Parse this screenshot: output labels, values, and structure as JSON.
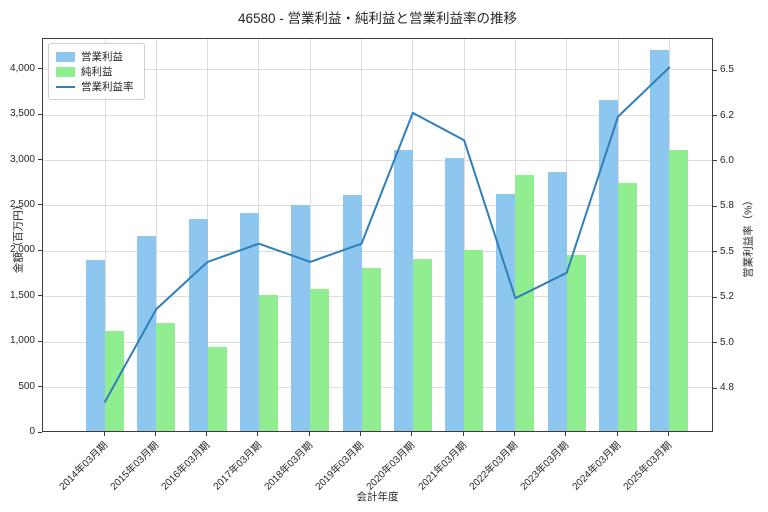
{
  "title": "46580 - 営業利益・純利益と営業利益率の推移",
  "chart_data": {
    "type": "bar+line",
    "title": "46580 - 営業利益・純利益と営業利益率の推移",
    "xlabel": "会計年度",
    "ylabel_left": "金額（百万円）",
    "ylabel_right": "営業利益率（%）",
    "grid": true,
    "legend_position": "upper-left",
    "categories": [
      "2014年03月期",
      "2015年03月期",
      "2016年03月期",
      "2017年03月期",
      "2018年03月期",
      "2019年03月期",
      "2020年03月期",
      "2021年03月期",
      "2022年03月期",
      "2023年03月期",
      "2024年03月期",
      "2025年03月期"
    ],
    "series": [
      {
        "name": "営業利益",
        "type": "bar",
        "axis": "left",
        "color": "#8dc7f0",
        "values": [
          1880,
          2150,
          2330,
          2400,
          2490,
          2600,
          3100,
          3010,
          2610,
          2850,
          3640,
          4200
        ]
      },
      {
        "name": "純利益",
        "type": "bar",
        "axis": "left",
        "color": "#90ee90",
        "values": [
          1100,
          1190,
          920,
          1500,
          1560,
          1800,
          1890,
          1990,
          2820,
          1940,
          2730,
          3100
        ]
      },
      {
        "name": "営業利益率",
        "type": "line",
        "axis": "right",
        "color": "#2f7fb9",
        "values": [
          4.68,
          5.19,
          5.45,
          5.55,
          5.45,
          5.55,
          6.27,
          6.12,
          5.25,
          5.39,
          6.25,
          6.52
        ]
      }
    ],
    "y_left": {
      "min": 0,
      "max": 4339,
      "ticks": [
        0,
        500,
        1000,
        1500,
        2000,
        2500,
        3000,
        3500,
        4000
      ],
      "tick_labels": [
        "0",
        "500",
        "1,000",
        "1,500",
        "2,000",
        "2,500",
        "3,000",
        "3,500",
        "4,000"
      ]
    },
    "y_right": {
      "min": 4.508,
      "max": 6.677,
      "ticks": [
        4.75,
        5.0,
        5.25,
        5.5,
        5.75,
        6.0,
        6.25,
        6.5
      ],
      "tick_labels": [
        "4.8",
        "5.0",
        "5.2",
        "5.5",
        "5.8",
        "6.0",
        "6.2",
        "6.5"
      ]
    }
  }
}
